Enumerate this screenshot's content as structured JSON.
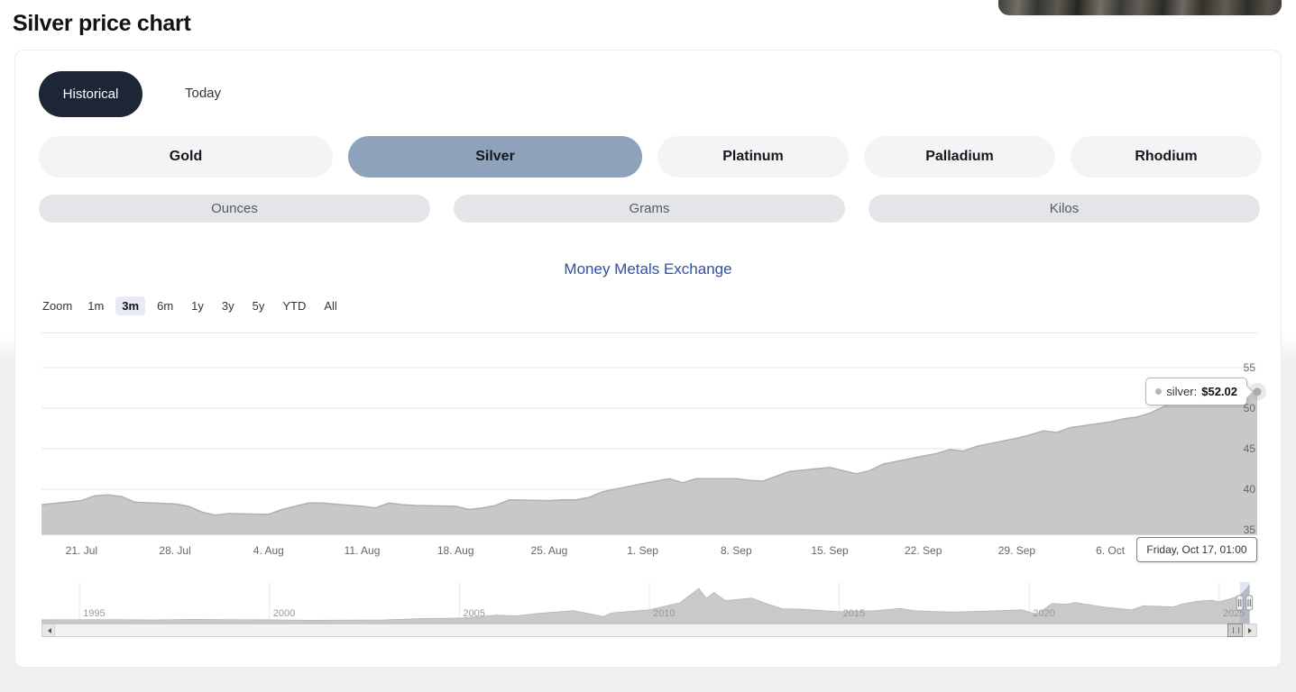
{
  "page": {
    "title": "Silver price chart"
  },
  "hero": {
    "image_alt": "silver coins photo"
  },
  "view_tabs": {
    "historical": "Historical",
    "today": "Today"
  },
  "metal_tabs": [
    {
      "label": "Gold",
      "selected": false
    },
    {
      "label": "Silver",
      "selected": true
    },
    {
      "label": "Platinum",
      "selected": false
    },
    {
      "label": "Palladium",
      "selected": false
    },
    {
      "label": "Rhodium",
      "selected": false
    }
  ],
  "unit_tabs": [
    {
      "label": "Ounces"
    },
    {
      "label": "Grams"
    },
    {
      "label": "Kilos"
    }
  ],
  "chart_header": {
    "title_link": "Money Metals Exchange"
  },
  "range_selector": {
    "zoom_label": "Zoom",
    "buttons": [
      "1m",
      "3m",
      "6m",
      "1y",
      "3y",
      "5y",
      "YTD",
      "All"
    ],
    "selected": "3m"
  },
  "tooltip": {
    "series_label": "silver:",
    "value": "$52.02"
  },
  "x_axis_tooltip": "Friday, Oct 17, 01:00",
  "colors": {
    "active_tab_bg": "#1c2637",
    "selected_metal": "#8ea2bb",
    "link": "#2f50a5",
    "series_fill": "#c8c8c8",
    "series_line": "#b0b0b0",
    "zoom_selected_bg": "#e6ebf5"
  },
  "chart_data": {
    "type": "area",
    "title": "Money Metals Exchange",
    "series_name": "silver",
    "y_unit": "USD per troy ounce",
    "ylim": [
      35,
      55
    ],
    "y_ticks": [
      55,
      50,
      45,
      40,
      35
    ],
    "x_ticks": [
      {
        "label": "21. Jul",
        "date": "2025-07-21"
      },
      {
        "label": "28. Jul",
        "date": "2025-07-28"
      },
      {
        "label": "4. Aug",
        "date": "2025-08-04"
      },
      {
        "label": "11. Aug",
        "date": "2025-08-11"
      },
      {
        "label": "18. Aug",
        "date": "2025-08-18"
      },
      {
        "label": "25. Aug",
        "date": "2025-08-25"
      },
      {
        "label": "1. Sep",
        "date": "2025-09-01"
      },
      {
        "label": "8. Sep",
        "date": "2025-09-08"
      },
      {
        "label": "15. Sep",
        "date": "2025-09-15"
      },
      {
        "label": "22. Sep",
        "date": "2025-09-22"
      },
      {
        "label": "29. Sep",
        "date": "2025-09-29"
      },
      {
        "label": "6. Oct",
        "date": "2025-10-06"
      }
    ],
    "points": [
      [
        "2025-07-18",
        38.1
      ],
      [
        "2025-07-21",
        38.6
      ],
      [
        "2025-07-22",
        39.2
      ],
      [
        "2025-07-23",
        39.3
      ],
      [
        "2025-07-24",
        39.1
      ],
      [
        "2025-07-25",
        38.4
      ],
      [
        "2025-07-28",
        38.2
      ],
      [
        "2025-07-29",
        37.9
      ],
      [
        "2025-07-30",
        37.2
      ],
      [
        "2025-07-31",
        36.8
      ],
      [
        "2025-08-01",
        37.0
      ],
      [
        "2025-08-04",
        36.9
      ],
      [
        "2025-08-05",
        37.5
      ],
      [
        "2025-08-06",
        37.9
      ],
      [
        "2025-08-07",
        38.3
      ],
      [
        "2025-08-08",
        38.3
      ],
      [
        "2025-08-11",
        37.9
      ],
      [
        "2025-08-12",
        37.7
      ],
      [
        "2025-08-13",
        38.3
      ],
      [
        "2025-08-14",
        38.1
      ],
      [
        "2025-08-15",
        38.0
      ],
      [
        "2025-08-18",
        37.9
      ],
      [
        "2025-08-19",
        37.5
      ],
      [
        "2025-08-20",
        37.7
      ],
      [
        "2025-08-21",
        38.0
      ],
      [
        "2025-08-22",
        38.7
      ],
      [
        "2025-08-25",
        38.6
      ],
      [
        "2025-08-26",
        38.7
      ],
      [
        "2025-08-27",
        38.7
      ],
      [
        "2025-08-28",
        39.0
      ],
      [
        "2025-08-29",
        39.7
      ],
      [
        "2025-09-01",
        40.7
      ],
      [
        "2025-09-02",
        41.0
      ],
      [
        "2025-09-03",
        41.3
      ],
      [
        "2025-09-04",
        40.8
      ],
      [
        "2025-09-05",
        41.3
      ],
      [
        "2025-09-08",
        41.3
      ],
      [
        "2025-09-09",
        41.1
      ],
      [
        "2025-09-10",
        41.0
      ],
      [
        "2025-09-11",
        41.6
      ],
      [
        "2025-09-12",
        42.2
      ],
      [
        "2025-09-15",
        42.7
      ],
      [
        "2025-09-16",
        42.3
      ],
      [
        "2025-09-17",
        41.9
      ],
      [
        "2025-09-18",
        42.3
      ],
      [
        "2025-09-19",
        43.1
      ],
      [
        "2025-09-22",
        44.1
      ],
      [
        "2025-09-23",
        44.4
      ],
      [
        "2025-09-24",
        44.9
      ],
      [
        "2025-09-25",
        44.7
      ],
      [
        "2025-09-26",
        45.3
      ],
      [
        "2025-09-29",
        46.3
      ],
      [
        "2025-09-30",
        46.7
      ],
      [
        "2025-10-01",
        47.2
      ],
      [
        "2025-10-02",
        47.0
      ],
      [
        "2025-10-03",
        47.6
      ],
      [
        "2025-10-06",
        48.3
      ],
      [
        "2025-10-07",
        48.7
      ],
      [
        "2025-10-08",
        48.9
      ],
      [
        "2025-10-09",
        49.4
      ],
      [
        "2025-10-10",
        50.2
      ],
      [
        "2025-10-13",
        51.5
      ],
      [
        "2025-10-14",
        52.6
      ],
      [
        "2025-10-15",
        51.9
      ],
      [
        "2025-10-16",
        52.3
      ],
      [
        "2025-10-17",
        52.02
      ]
    ],
    "last_point": {
      "date": "2025-10-17",
      "value": 52.02,
      "display": "$52.02"
    },
    "navigator": {
      "range": [
        1994,
        2026
      ],
      "value_max": 56,
      "x_ticks": [
        1995,
        2000,
        2005,
        2010,
        2015,
        2020,
        2025
      ],
      "selected_range": [
        2025.54,
        2025.79
      ],
      "points": [
        [
          1994,
          5.0
        ],
        [
          1995,
          5.2
        ],
        [
          1996,
          5.1
        ],
        [
          1997,
          4.9
        ],
        [
          1998,
          5.6
        ],
        [
          1999,
          5.2
        ],
        [
          2000,
          5.0
        ],
        [
          2001,
          4.4
        ],
        [
          2002,
          4.6
        ],
        [
          2003,
          4.9
        ],
        [
          2004,
          6.7
        ],
        [
          2005,
          7.3
        ],
        [
          2006,
          11.5
        ],
        [
          2006.5,
          10.2
        ],
        [
          2007,
          13.4
        ],
        [
          2008,
          17.5
        ],
        [
          2008.8,
          9.5
        ],
        [
          2009,
          14.2
        ],
        [
          2010,
          18.5
        ],
        [
          2010.8,
          28.0
        ],
        [
          2011.3,
          47.5
        ],
        [
          2011.5,
          34.0
        ],
        [
          2011.7,
          42.0
        ],
        [
          2012,
          31.0
        ],
        [
          2012.7,
          34.5
        ],
        [
          2013,
          28.5
        ],
        [
          2013.5,
          20.0
        ],
        [
          2014,
          19.5
        ],
        [
          2015,
          16.0
        ],
        [
          2016,
          17.5
        ],
        [
          2016.6,
          20.5
        ],
        [
          2017,
          17.2
        ],
        [
          2018,
          15.5
        ],
        [
          2019,
          17.0
        ],
        [
          2019.8,
          18.5
        ],
        [
          2020.2,
          12.5
        ],
        [
          2020.6,
          27.0
        ],
        [
          2021,
          26.0
        ],
        [
          2021.2,
          28.5
        ],
        [
          2022,
          22.0
        ],
        [
          2022.7,
          18.5
        ],
        [
          2023,
          24.0
        ],
        [
          2023.8,
          22.5
        ],
        [
          2024,
          26.0
        ],
        [
          2024.4,
          30.0
        ],
        [
          2024.8,
          31.5
        ],
        [
          2025.0,
          29.5
        ],
        [
          2025.3,
          33.5
        ],
        [
          2025.55,
          38.0
        ],
        [
          2025.7,
          46.0
        ],
        [
          2025.79,
          52.0
        ]
      ]
    }
  }
}
